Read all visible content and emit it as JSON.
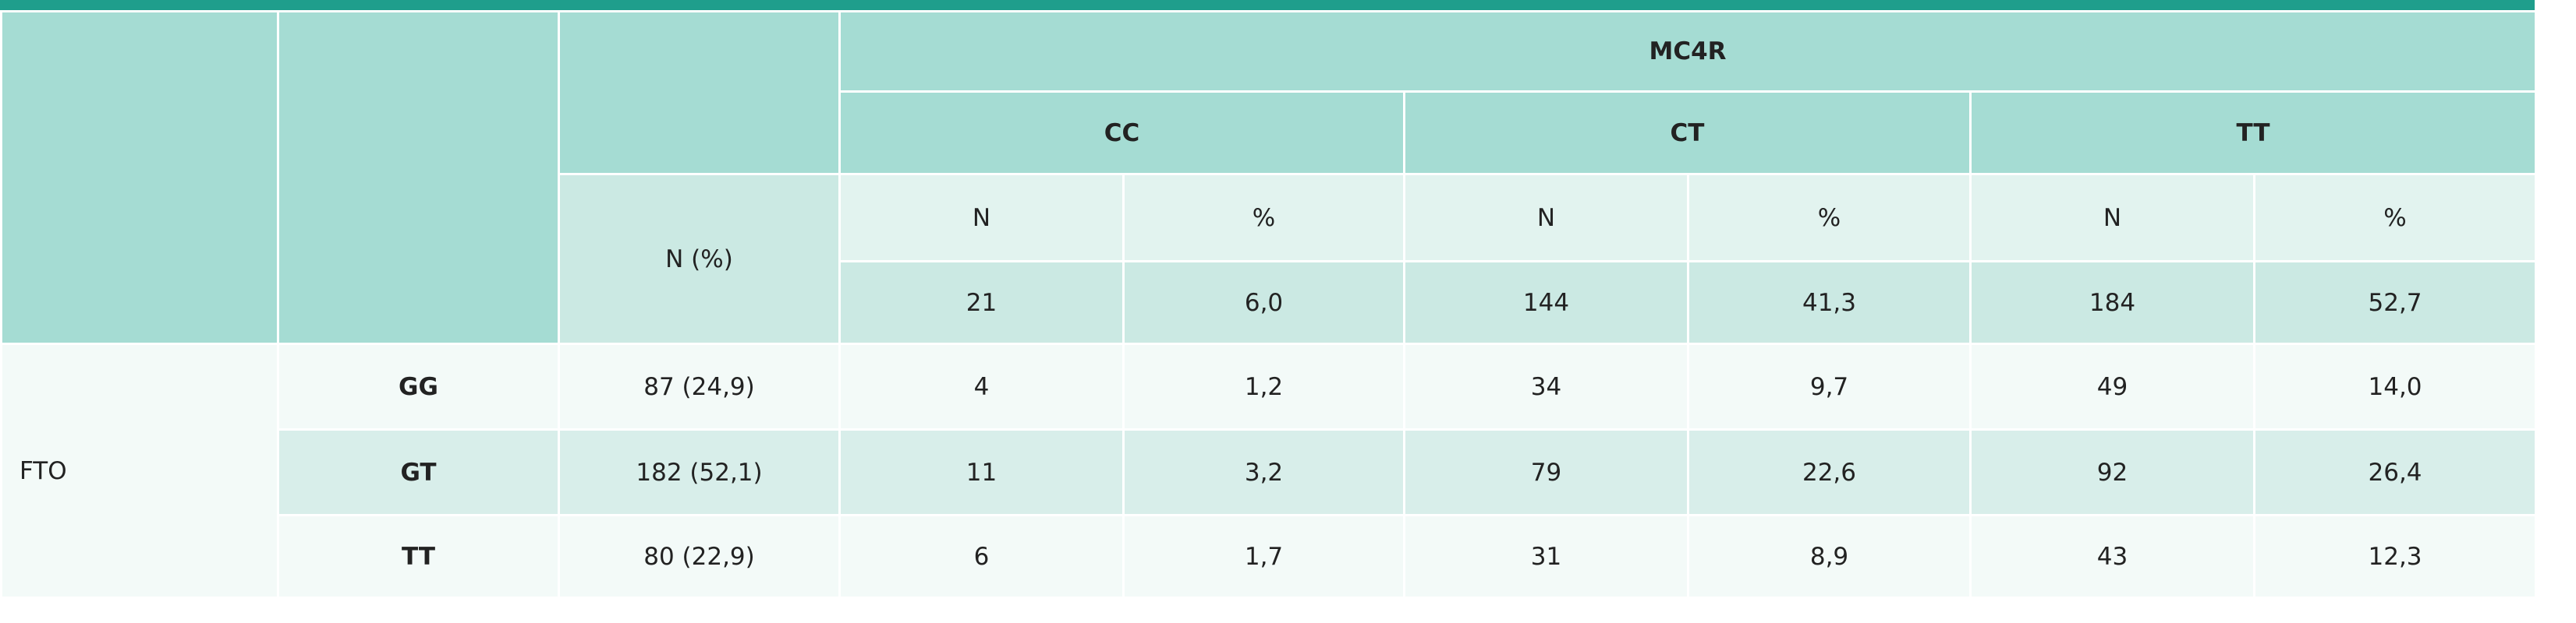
{
  "table": {
    "header": {
      "gene": "MC4R",
      "genotypes": [
        "CC",
        "CT",
        "TT"
      ],
      "n_pct": "N (%)",
      "sub": [
        "N",
        "%",
        "N",
        "%",
        "N",
        "%"
      ],
      "totals": [
        "21",
        "6,0",
        "144",
        "41,3",
        "184",
        "52,7"
      ]
    },
    "group": "FTO",
    "rows": [
      {
        "genotype": "GG",
        "n_pct": "87 (24,9)",
        "cells": [
          "4",
          "1,2",
          "34",
          "9,7",
          "49",
          "14,0"
        ]
      },
      {
        "genotype": "GT",
        "n_pct": "182 (52,1)",
        "cells": [
          "11",
          "3,2",
          "79",
          "22,6",
          "92",
          "26,4"
        ]
      },
      {
        "genotype": "TT",
        "n_pct": "80 (22,9)",
        "cells": [
          "6",
          "1,7",
          "31",
          "8,9",
          "43",
          "12,3"
        ]
      }
    ]
  }
}
